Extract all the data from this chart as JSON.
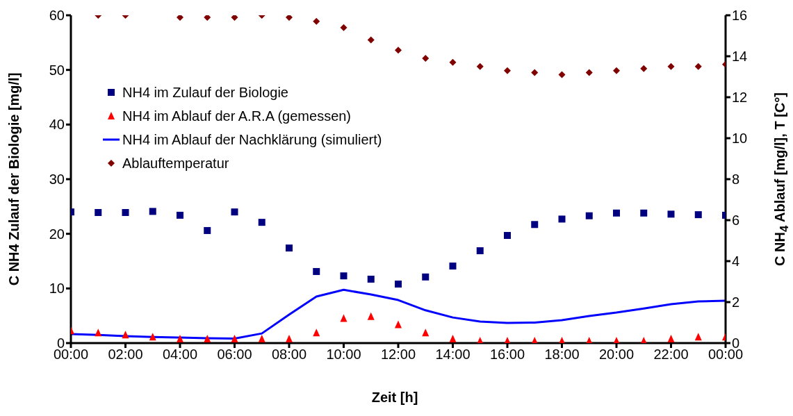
{
  "chart_data": {
    "type": "scatter",
    "xlabel": "Zeit [h]",
    "ylabel": "C NH4 Zulauf der Biologie [mg/l]",
    "y2label": "C NH$_{4}$ Ablauf [mg/l], T [C°]",
    "x": [
      0,
      1,
      2,
      3,
      4,
      5,
      6,
      7,
      8,
      9,
      10,
      11,
      12,
      13,
      14,
      15,
      16,
      17,
      18,
      19,
      20,
      21,
      22,
      23,
      24
    ],
    "xlim": [
      0,
      24
    ],
    "xticks": [
      {
        "value": 0,
        "label": "00:00"
      },
      {
        "value": 2,
        "label": "02:00"
      },
      {
        "value": 4,
        "label": "04:00"
      },
      {
        "value": 6,
        "label": "06:00"
      },
      {
        "value": 8,
        "label": "08:00"
      },
      {
        "value": 10,
        "label": "10:00"
      },
      {
        "value": 12,
        "label": "12:00"
      },
      {
        "value": 14,
        "label": "14:00"
      },
      {
        "value": 16,
        "label": "16:00"
      },
      {
        "value": 18,
        "label": "18:00"
      },
      {
        "value": 20,
        "label": "20:00"
      },
      {
        "value": 22,
        "label": "22:00"
      },
      {
        "value": 24,
        "label": "00:00"
      }
    ],
    "ylim": [
      0,
      60
    ],
    "yticks": [
      0,
      10,
      20,
      30,
      40,
      50,
      60
    ],
    "y2lim": [
      0,
      16
    ],
    "y2ticks": [
      0,
      2,
      4,
      6,
      8,
      10,
      12,
      14,
      16
    ],
    "legend": "left",
    "grid": false,
    "series": [
      {
        "name": "NH4 im Zulauf der Biologie",
        "marker": "square",
        "color": "#000080",
        "values": [
          24.0,
          23.9,
          23.9,
          24.1,
          23.4,
          20.6,
          24.0,
          22.1,
          17.4,
          13.1,
          12.3,
          11.7,
          10.8,
          12.1,
          14.1,
          16.9,
          19.7,
          21.7,
          22.7,
          23.3,
          23.8,
          23.8,
          23.6,
          23.5,
          23.4
        ]
      },
      {
        "name": "NH4 im Ablauf der A.R.A (gemessen)",
        "marker": "triangle",
        "axis": "y2",
        "color": "#ff0000",
        "values": [
          0.6,
          0.5,
          0.4,
          0.3,
          0.2,
          0.2,
          0.2,
          0.2,
          0.2,
          0.5,
          1.2,
          1.3,
          0.9,
          0.5,
          0.2,
          0.1,
          0.1,
          0.1,
          0.1,
          0.1,
          0.1,
          0.1,
          0.2,
          0.3,
          0.3
        ]
      },
      {
        "name": "NH4 im Ablauf der Nachklärung (simuliert)",
        "type": "line",
        "marker": "none",
        "axis": "y2",
        "color": "#0000ff",
        "values": [
          0.44,
          0.4,
          0.34,
          0.3,
          0.27,
          0.24,
          0.22,
          0.47,
          1.39,
          2.27,
          2.6,
          2.37,
          2.1,
          1.6,
          1.25,
          1.05,
          0.98,
          1.0,
          1.12,
          1.32,
          1.49,
          1.69,
          1.9,
          2.03,
          2.07
        ]
      },
      {
        "name": "Ablauftemperatur",
        "marker": "diamond",
        "axis": "y2",
        "color": "#800000",
        "values": [
          null,
          16.0,
          16.0,
          null,
          15.9,
          15.9,
          15.9,
          16.0,
          15.9,
          15.7,
          15.4,
          14.8,
          14.3,
          13.9,
          13.7,
          13.5,
          13.3,
          13.2,
          13.1,
          13.2,
          13.3,
          13.4,
          13.5,
          13.5,
          13.6
        ]
      }
    ]
  }
}
